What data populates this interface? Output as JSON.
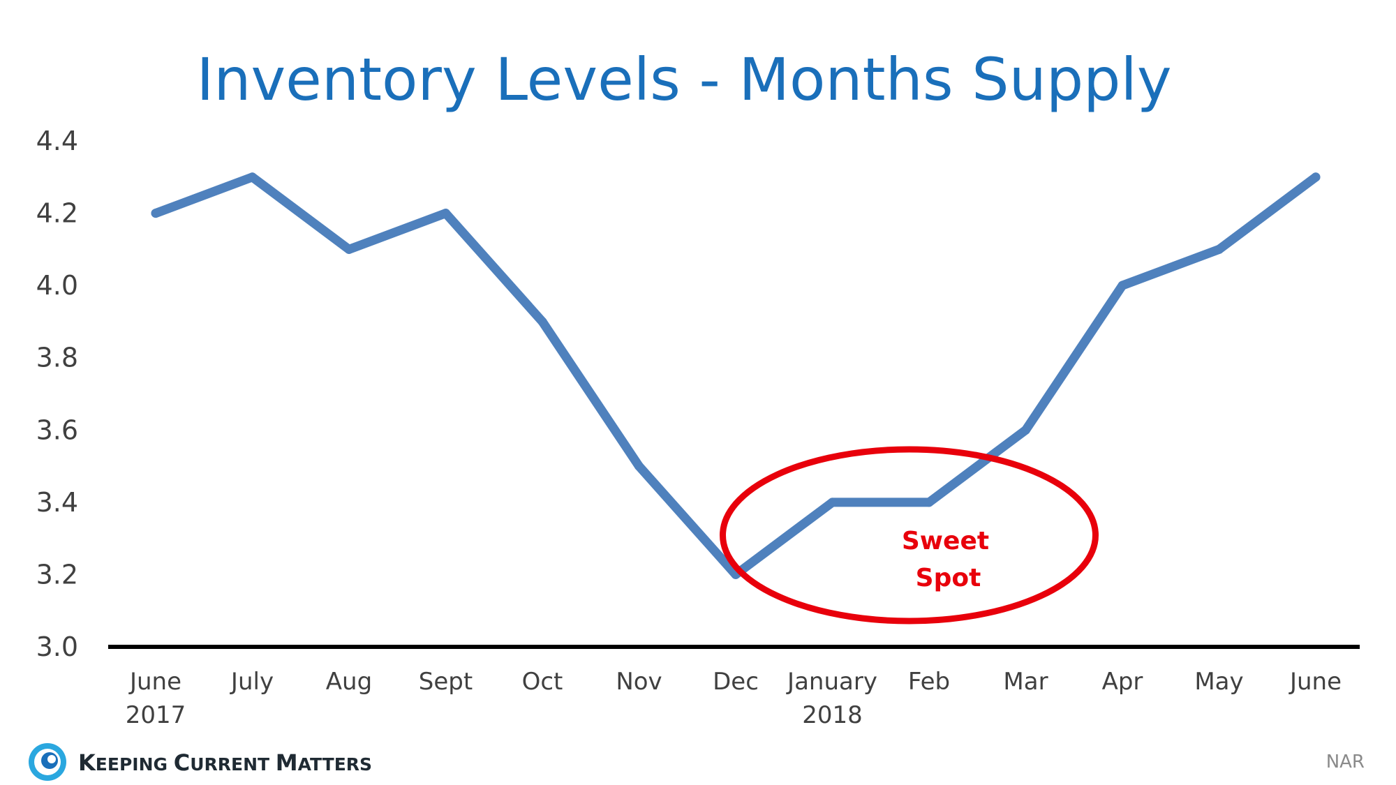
{
  "chart_data": {
    "type": "line",
    "title": "Inventory Levels - Months Supply",
    "categories": [
      [
        "June",
        "2017"
      ],
      [
        "July"
      ],
      [
        "Aug"
      ],
      [
        "Sept"
      ],
      [
        "Oct"
      ],
      [
        "Nov"
      ],
      [
        "Dec"
      ],
      [
        "January",
        "2018"
      ],
      [
        "Feb"
      ],
      [
        "Mar"
      ],
      [
        "Apr"
      ],
      [
        "May"
      ],
      [
        "June"
      ]
    ],
    "series": [
      {
        "values": [
          4.2,
          4.3,
          4.1,
          4.2,
          3.9,
          3.5,
          3.2,
          3.4,
          3.4,
          3.6,
          4.0,
          4.1,
          4.3
        ]
      }
    ],
    "ylim": [
      3.0,
      4.4
    ],
    "yticks": [
      "3.0",
      "3.2",
      "3.4",
      "3.6",
      "3.8",
      "4.0",
      "4.2",
      "4.4"
    ],
    "grid": false,
    "annotation": {
      "lines": [
        "Sweet",
        "Spot"
      ],
      "highlight": [
        "Dec",
        "Feb"
      ]
    },
    "colors": {
      "line": "#4f81bd",
      "title": "#1a6fba",
      "highlight": "#e8000b",
      "axis": "#000000"
    }
  },
  "footer": {
    "brand": {
      "first": [
        "K",
        "EEPING "
      ],
      "second": [
        "C",
        "URRENT "
      ],
      "third": [
        "M",
        "ATTERS"
      ]
    },
    "brand_icon": "swirl-logo-icon",
    "source": "NAR"
  }
}
